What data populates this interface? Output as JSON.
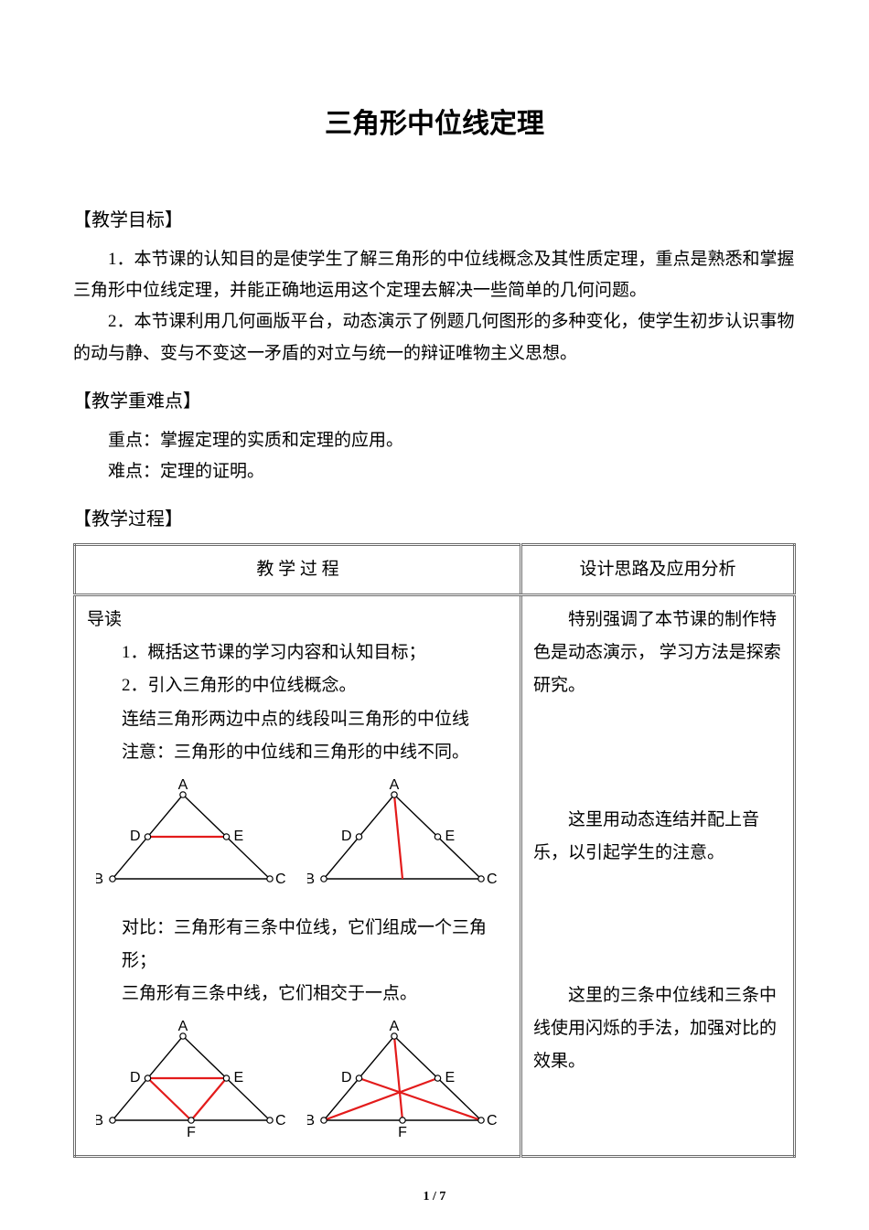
{
  "title": "三角形中位线定理",
  "sections": {
    "objectives_heading": "【教学目标】",
    "objective_1": "1．本节课的认知目的是使学生了解三角形的中位线概念及其性质定理，重点是熟悉和掌握三角形中位线定理，并能正确地运用这个定理去解决一些简单的几何问题。",
    "objective_2": "2．本节课利用几何画版平台，动态演示了例题几何图形的多种变化，使学生初步认识事物的动与静、变与不变这一矛盾的对立与统一的辩证唯物主义思想。",
    "keypoints_heading": "【教学重难点】",
    "keypoint": "重点：掌握定理的实质和定理的应用。",
    "difficulty": "难点：定理的证明。",
    "process_heading": "【教学过程】"
  },
  "table": {
    "header_left": "教 学 过 程",
    "header_right": "设计思路及应用分析",
    "left": {
      "intro": "导读",
      "item1": "1．概括这节课的学习内容和认知目标；",
      "item2": "2．引入三角形的中位线概念。",
      "def_line": "连结三角形两边中点的线段叫三角形的中位线",
      "note_line": "注意：三角形的中位线和三角形的中线不同。",
      "compare_a": "对比：三角形有三条中位线，它们组成一个三角形；",
      "compare_b": "三角形有三条中线，它们相交于一点。"
    },
    "right": {
      "p1": "特别强调了本节课的制作特色是动态演示， 学习方法是探索研究。",
      "p2": "这里用动态连结并配上音乐，以引起学生的注意。",
      "p3": "这里的三条中位线和三条中线使用闪烁的手法，加强对比的效果。"
    }
  },
  "figures": {
    "labels": {
      "A": "A",
      "B": "B",
      "C": "C",
      "D": "D",
      "E": "E",
      "F": "F"
    },
    "colors": {
      "line": "#000000",
      "highlight": "#e31b1b",
      "vertex_fill": "#ffffff",
      "vertex_stroke": "#000000",
      "label": "#000000"
    },
    "stroke_width": 1.4,
    "highlight_width": 2.2,
    "vertex_radius": 3.2
  },
  "page_footer": "1 / 7"
}
